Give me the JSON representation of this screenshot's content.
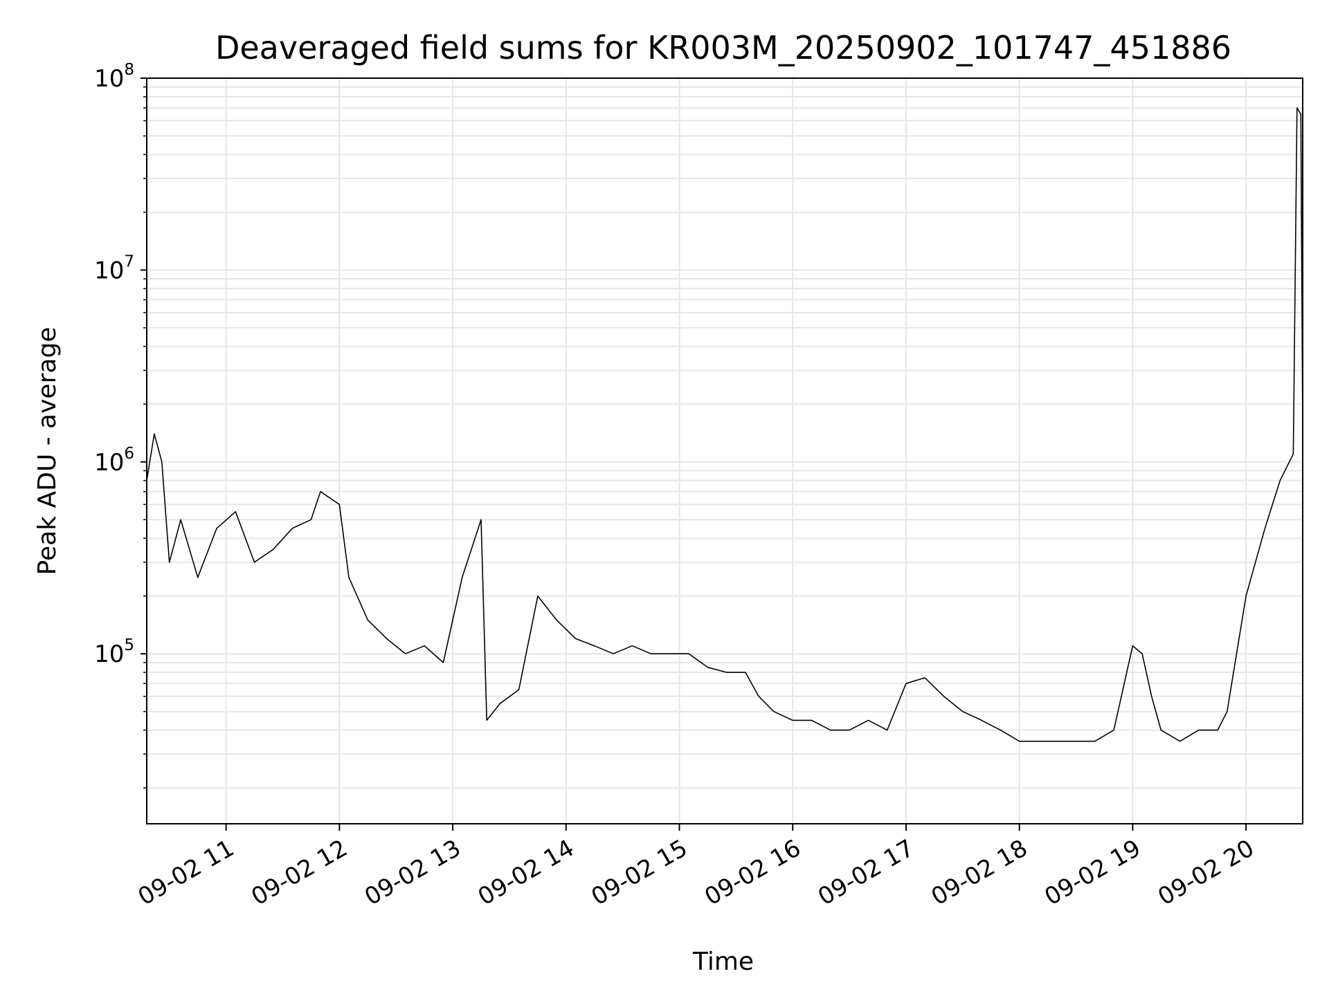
{
  "chart_data": {
    "type": "line",
    "title": "Deaveraged field sums for KR003M_20250902_101747_451886",
    "xlabel": "Time",
    "ylabel": "Peak ADU - average",
    "yscale": "log",
    "xlim": [
      "2025-09-02 10:18",
      "2025-09-02 20:30"
    ],
    "ylim": [
      13000,
      100000000
    ],
    "x_ticks": [
      "09-02 11",
      "09-02 12",
      "09-02 13",
      "09-02 14",
      "09-02 15",
      "09-02 16",
      "09-02 17",
      "09-02 18",
      "09-02 19",
      "09-02 20"
    ],
    "y_ticks": [
      {
        "base": "10",
        "exp": "5",
        "value": 100000
      },
      {
        "base": "10",
        "exp": "6",
        "value": 1000000
      },
      {
        "base": "10",
        "exp": "7",
        "value": 10000000
      },
      {
        "base": "10",
        "exp": "8",
        "value": 100000000
      }
    ],
    "grid": true,
    "line_color": "#000000",
    "series": [
      {
        "x": [
          "2025-09-02 10:18",
          "2025-09-02 10:22",
          "2025-09-02 10:26",
          "2025-09-02 10:30",
          "2025-09-02 10:36",
          "2025-09-02 10:45",
          "2025-09-02 10:55",
          "2025-09-02 11:05",
          "2025-09-02 11:15",
          "2025-09-02 11:25",
          "2025-09-02 11:35",
          "2025-09-02 11:45",
          "2025-09-02 11:50",
          "2025-09-02 12:00",
          "2025-09-02 12:05",
          "2025-09-02 12:15",
          "2025-09-02 12:25",
          "2025-09-02 12:35",
          "2025-09-02 12:45",
          "2025-09-02 12:55",
          "2025-09-02 13:05",
          "2025-09-02 13:15",
          "2025-09-02 13:18",
          "2025-09-02 13:25",
          "2025-09-02 13:35",
          "2025-09-02 13:45",
          "2025-09-02 13:55",
          "2025-09-02 14:05",
          "2025-09-02 14:15",
          "2025-09-02 14:25",
          "2025-09-02 14:35",
          "2025-09-02 14:45",
          "2025-09-02 14:55",
          "2025-09-02 15:05",
          "2025-09-02 15:15",
          "2025-09-02 15:25",
          "2025-09-02 15:35",
          "2025-09-02 15:42",
          "2025-09-02 15:50",
          "2025-09-02 16:00",
          "2025-09-02 16:10",
          "2025-09-02 16:20",
          "2025-09-02 16:30",
          "2025-09-02 16:40",
          "2025-09-02 16:50",
          "2025-09-02 17:00",
          "2025-09-02 17:10",
          "2025-09-02 17:20",
          "2025-09-02 17:30",
          "2025-09-02 17:40",
          "2025-09-02 17:50",
          "2025-09-02 18:00",
          "2025-09-02 18:10",
          "2025-09-02 18:20",
          "2025-09-02 18:30",
          "2025-09-02 18:40",
          "2025-09-02 18:50",
          "2025-09-02 19:00",
          "2025-09-02 19:05",
          "2025-09-02 19:10",
          "2025-09-02 19:15",
          "2025-09-02 19:25",
          "2025-09-02 19:35",
          "2025-09-02 19:45",
          "2025-09-02 19:50",
          "2025-09-02 20:00",
          "2025-09-02 20:10",
          "2025-09-02 20:18",
          "2025-09-02 20:25",
          "2025-09-02 20:27",
          "2025-09-02 20:29",
          "2025-09-02 20:30"
        ],
        "y": [
          800000,
          1400000,
          1000000,
          300000,
          500000,
          250000,
          450000,
          550000,
          300000,
          350000,
          450000,
          500000,
          700000,
          600000,
          250000,
          150000,
          120000,
          100000,
          110000,
          90000,
          250000,
          500000,
          45000,
          55000,
          65000,
          200000,
          150000,
          120000,
          110000,
          100000,
          110000,
          100000,
          100000,
          100000,
          85000,
          80000,
          80000,
          60000,
          50000,
          45000,
          45000,
          40000,
          40000,
          45000,
          40000,
          70000,
          75000,
          60000,
          50000,
          45000,
          40000,
          35000,
          35000,
          35000,
          35000,
          35000,
          40000,
          110000,
          100000,
          60000,
          40000,
          35000,
          40000,
          40000,
          50000,
          200000,
          450000,
          800000,
          1100000,
          70000000,
          65000000,
          1500000
        ]
      }
    ]
  }
}
